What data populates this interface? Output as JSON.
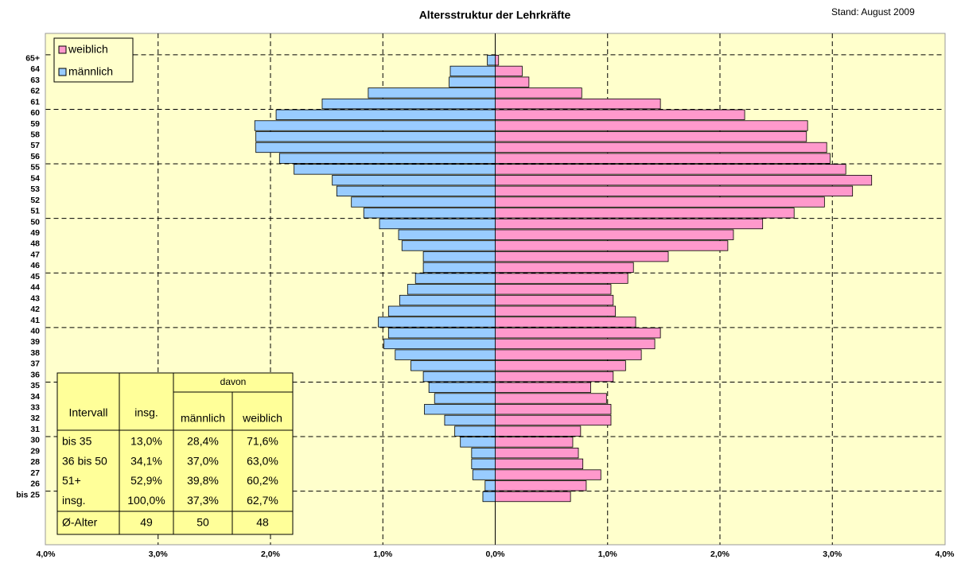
{
  "chart_data": {
    "type": "pyramid",
    "title": "Altersstruktur der Lehrkräfte",
    "subtitle": "Stand: August 2009",
    "categories": [
      "bis 25",
      "26",
      "27",
      "28",
      "29",
      "30",
      "31",
      "32",
      "33",
      "34",
      "35",
      "36",
      "37",
      "38",
      "39",
      "40",
      "41",
      "42",
      "43",
      "44",
      "45",
      "46",
      "47",
      "48",
      "49",
      "50",
      "51",
      "52",
      "53",
      "54",
      "55",
      "56",
      "57",
      "58",
      "59",
      "60",
      "61",
      "62",
      "63",
      "64",
      "65+"
    ],
    "series": [
      {
        "name": "weiblich",
        "color": "#ff99cc",
        "values": [
          0.67,
          0.81,
          0.94,
          0.78,
          0.74,
          0.69,
          0.76,
          1.03,
          1.03,
          0.99,
          0.85,
          1.05,
          1.16,
          1.3,
          1.42,
          1.47,
          1.25,
          1.07,
          1.05,
          1.03,
          1.18,
          1.23,
          1.54,
          2.07,
          2.12,
          2.38,
          2.66,
          2.93,
          3.18,
          3.35,
          3.12,
          2.98,
          2.95,
          2.77,
          2.78,
          2.22,
          1.47,
          0.77,
          0.3,
          0.24,
          0.03
        ]
      },
      {
        "name": "männlich",
        "color": "#99ccff",
        "values": [
          -0.11,
          -0.09,
          -0.2,
          -0.21,
          -0.21,
          -0.31,
          -0.36,
          -0.45,
          -0.63,
          -0.54,
          -0.59,
          -0.64,
          -0.75,
          -0.89,
          -0.99,
          -0.95,
          -1.04,
          -0.95,
          -0.85,
          -0.78,
          -0.71,
          -0.64,
          -0.64,
          -0.83,
          -0.86,
          -1.03,
          -1.17,
          -1.28,
          -1.41,
          -1.45,
          -1.79,
          -1.92,
          -2.13,
          -2.13,
          -2.14,
          -1.95,
          -1.54,
          -1.13,
          -0.41,
          -0.4,
          -0.07
        ]
      }
    ],
    "xlim": [
      -4,
      4
    ],
    "xticks": [
      {
        "value": -4,
        "label": "4,0%"
      },
      {
        "value": -3,
        "label": "3,0%"
      },
      {
        "value": -2,
        "label": "2,0%"
      },
      {
        "value": -1,
        "label": "1,0%"
      },
      {
        "value": 0,
        "label": "0,0%"
      },
      {
        "value": 1,
        "label": "1,0%"
      },
      {
        "value": 2,
        "label": "2,0%"
      },
      {
        "value": 3,
        "label": "3,0%"
      },
      {
        "value": 4,
        "label": "4,0%"
      }
    ],
    "grid": true,
    "legend": "top-left",
    "table": {
      "header": [
        "Intervall",
        "insg.",
        "davon",
        "männlich",
        "weiblich"
      ],
      "rows": [
        [
          "bis 35",
          "13,0%",
          "28,4%",
          "71,6%"
        ],
        [
          "36 bis 50",
          "34,1%",
          "37,0%",
          "63,0%"
        ],
        [
          "51+",
          "52,9%",
          "39,8%",
          "60,2%"
        ],
        [
          "insg.",
          "100,0%",
          "37,3%",
          "62,7%"
        ]
      ],
      "footer": [
        "Ø-Alter",
        49,
        50,
        48
      ]
    }
  }
}
